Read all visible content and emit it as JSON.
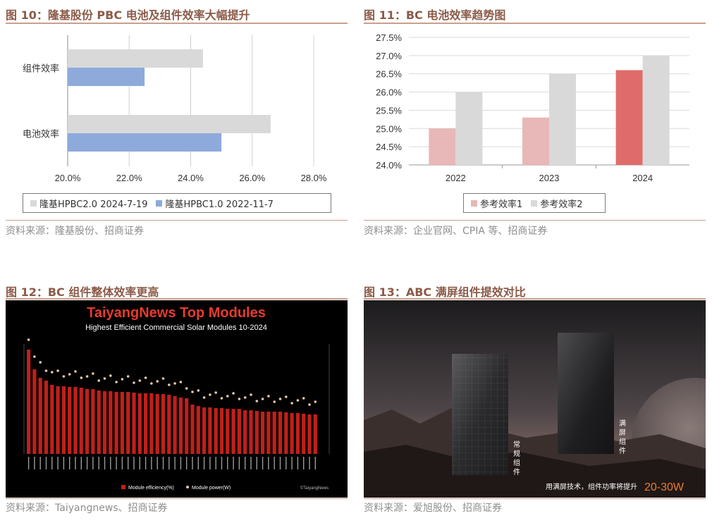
{
  "fig10": {
    "title": "图 10：隆基股份 PBC 电池及组件效率大幅提升",
    "source": "资料来源：隆基股份、招商证券",
    "legend": [
      "隆基HPBC2.0 2024-7-19",
      "隆基HPBC1.0 2022-11-7"
    ],
    "chart_data": {
      "type": "bar",
      "orientation": "horizontal",
      "categories": [
        "组件效率",
        "电池效率"
      ],
      "series": [
        {
          "name": "隆基HPBC2.0 2024-7-19",
          "values": [
            24.4,
            26.6
          ],
          "color": "#d9d9d9"
        },
        {
          "name": "隆基HPBC1.0 2022-11-7",
          "values": [
            22.5,
            25.0
          ],
          "color": "#8eaadb"
        }
      ],
      "xlim": [
        20,
        28
      ],
      "xticks": [
        "20.0%",
        "22.0%",
        "24.0%",
        "26.0%",
        "28.0%"
      ],
      "grid": true,
      "legend_position": "bottom"
    }
  },
  "fig11": {
    "title": "图 11：BC 电池效率趋势图",
    "source": "资料来源：企业官网、CPIA 等、招商证券",
    "legend": [
      "参考效率1",
      "参考效率2"
    ],
    "chart_data": {
      "type": "bar",
      "categories": [
        "2022",
        "2023",
        "2024"
      ],
      "series": [
        {
          "name": "参考效率1",
          "values": [
            25.0,
            25.3,
            26.6
          ],
          "colors": [
            "#e8b7b7",
            "#e8b7b7",
            "#e06b6b"
          ]
        },
        {
          "name": "参考效率2",
          "values": [
            26.0,
            26.5,
            27.0
          ],
          "color": "#d9d9d9"
        }
      ],
      "ylim": [
        24.0,
        27.5
      ],
      "yticks": [
        "24.0%",
        "24.5%",
        "25.0%",
        "25.5%",
        "26.0%",
        "26.5%",
        "27.0%",
        "27.5%"
      ],
      "grid": true,
      "legend_position": "bottom"
    }
  },
  "fig12": {
    "title": "图 12：BC 组件整体效率更高",
    "source": "资料来源：Taiyangnews、招商证券",
    "banner_title": "TaiyangNews Top Modules",
    "banner_subtitle": "Highest Efficient Commercial Solar Modules 10-2024",
    "legend_eff": "Module efficiency(%)",
    "legend_power": "Module power(W)",
    "watermark": "©TaiyangNews",
    "colors": {
      "bar": "#c0201a",
      "bg": "#000000"
    }
  },
  "fig13": {
    "title": "图 13：ABC 满屏组件提效对比",
    "source": "资料来源：爱旭股份、招商证券",
    "label_left": "常规组件",
    "label_right": "满屏组件",
    "caption": "用满屏技术，组件功率将提升",
    "caption_highlight": "20-30W"
  }
}
